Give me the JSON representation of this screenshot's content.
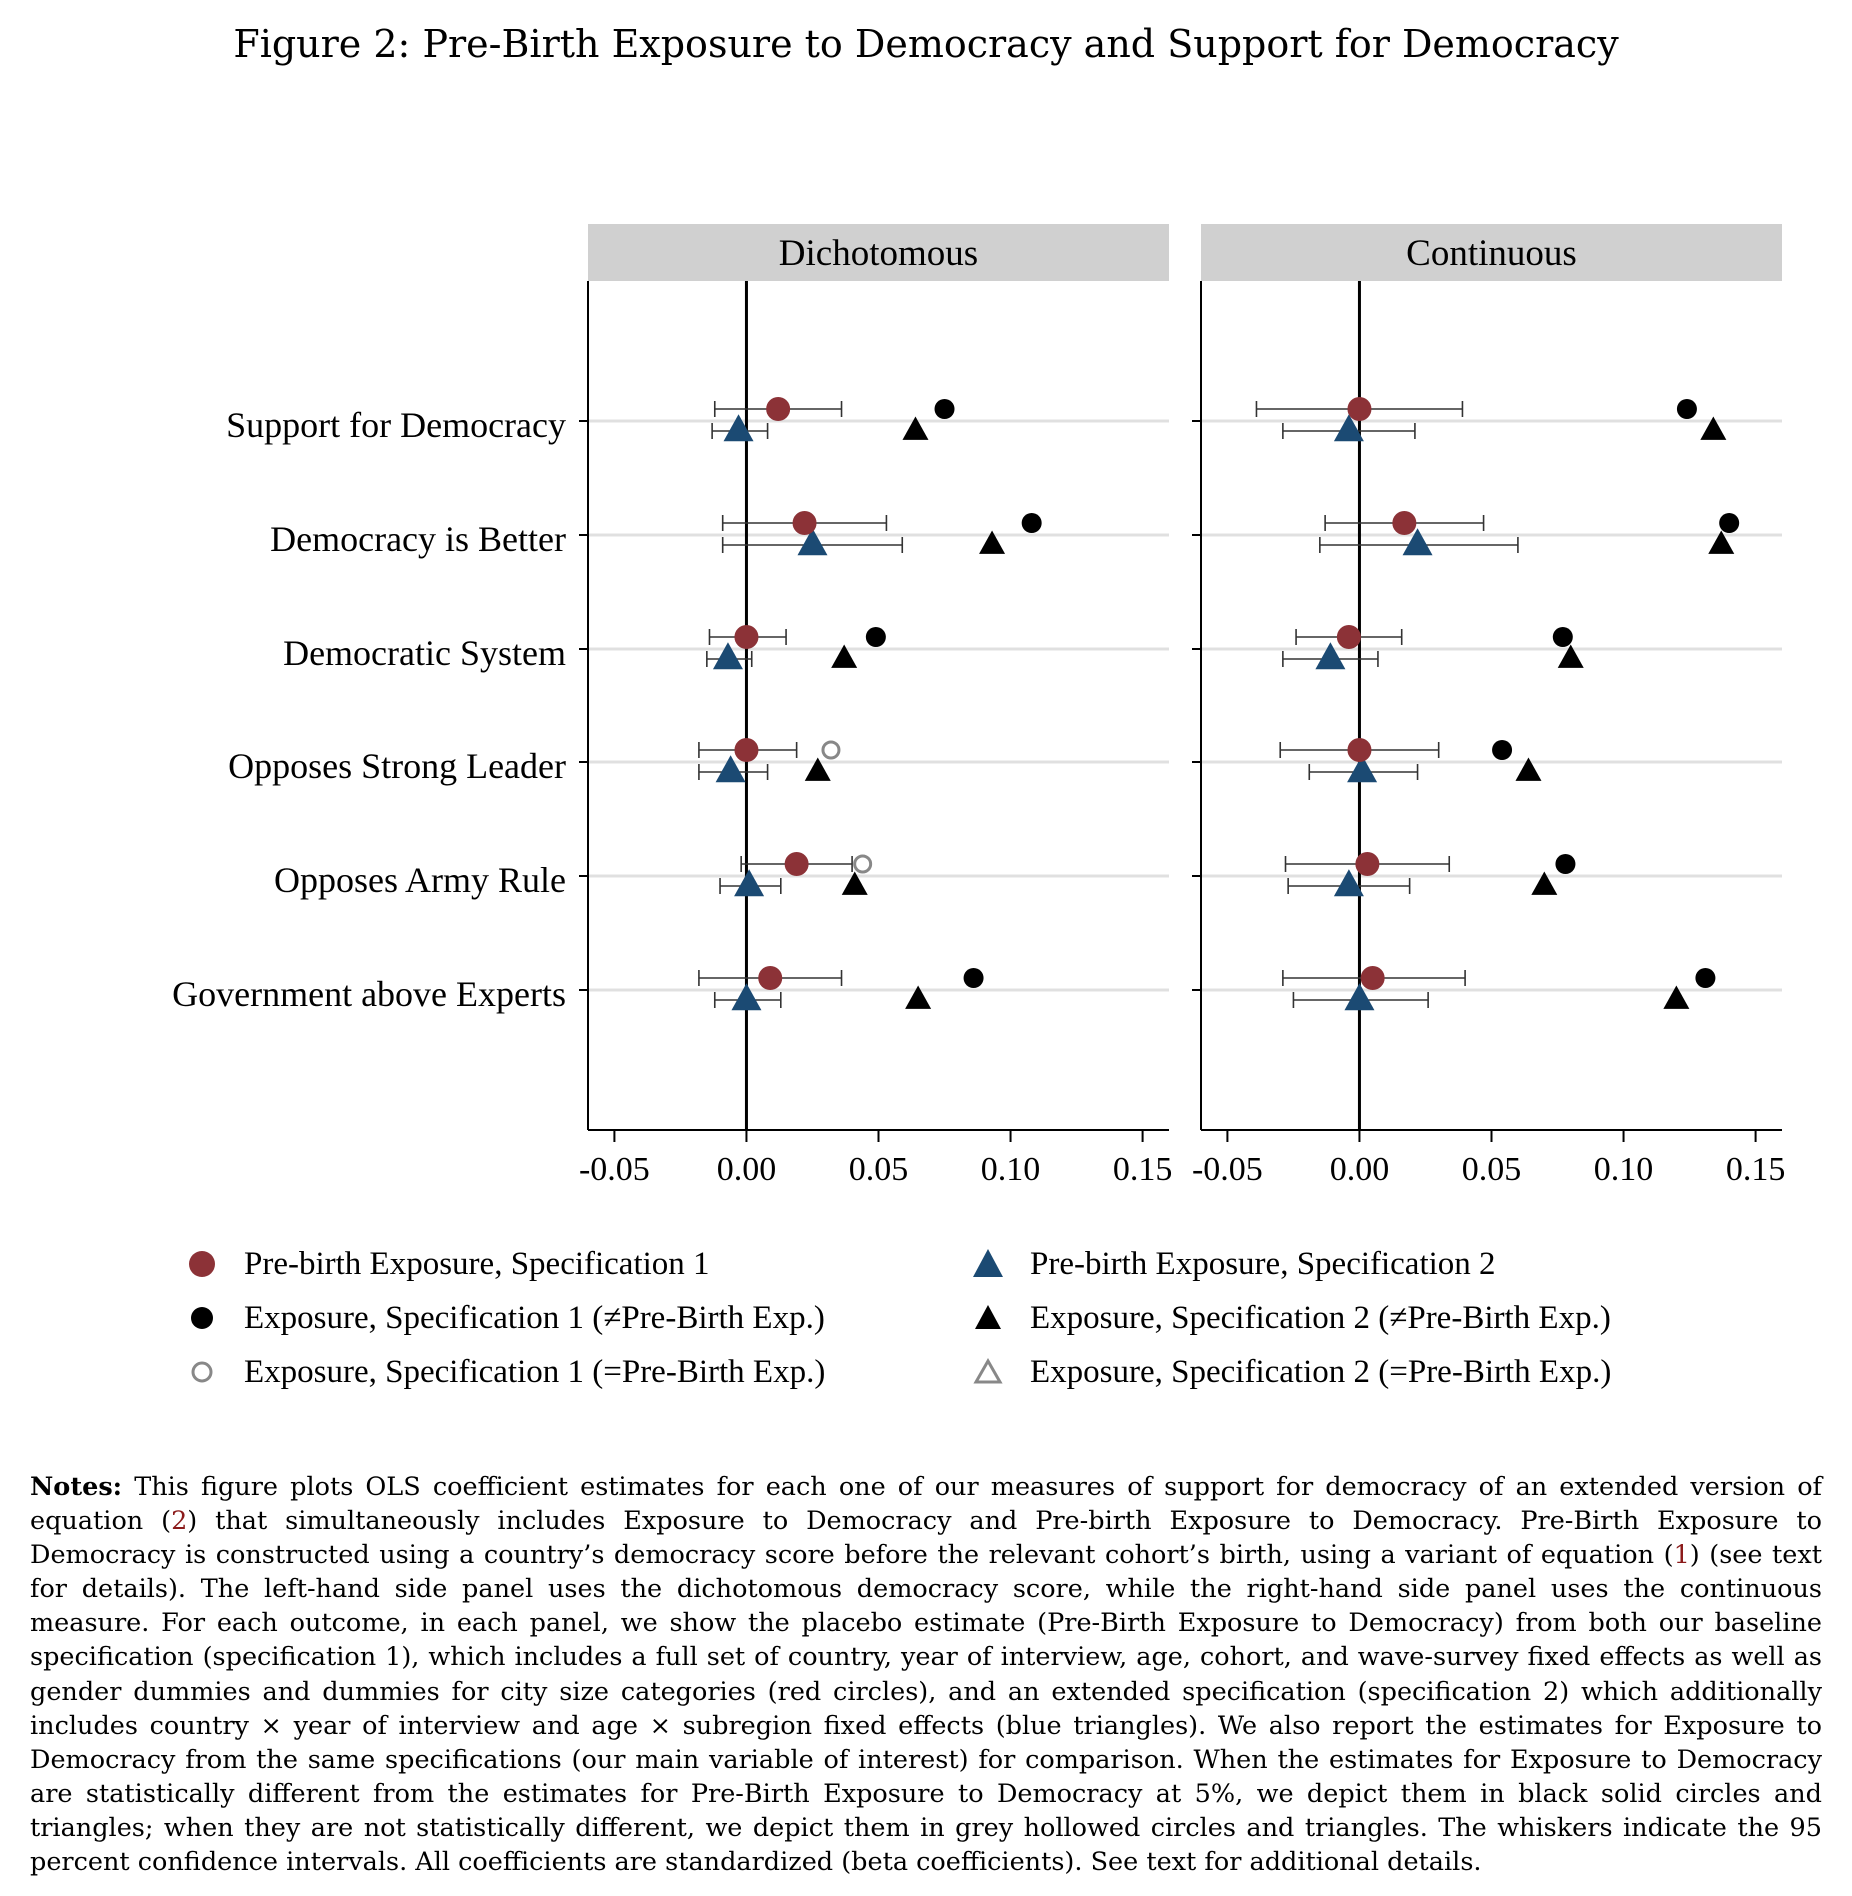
{
  "figure_title": "Figure 2: Pre-Birth Exposure to Democracy and Support for Democracy",
  "colors": {
    "prebirth_spec1": "#8c3237",
    "prebirth_spec2": "#1b4a73",
    "exposure_diff": "#000000",
    "exposure_same": "#888888",
    "panel_header": "#d0d0d0",
    "gridline": "#e0e0e0"
  },
  "chart_data": {
    "type": "scatter",
    "subtype": "coefficient-plot",
    "xlim": [
      -0.06,
      0.16
    ],
    "x_ticks": [
      "-0.05",
      "0.00",
      "0.05",
      "0.10",
      "0.15"
    ],
    "x_tick_values": [
      -0.05,
      0.0,
      0.05,
      0.1,
      0.15
    ],
    "reference_line": 0,
    "grid": "horizontal",
    "legend_position": "bottom",
    "outcomes": [
      "Support for Democracy",
      "Democracy is Better",
      "Democratic System",
      "Opposes Strong Leader",
      "Opposes Army Rule",
      "Government above Experts"
    ],
    "legend": [
      {
        "label": "Pre-birth Exposure, Specification 1",
        "marker": "circle",
        "fill": "#8c3237",
        "hollow": false
      },
      {
        "label": "Pre-birth Exposure, Specification 2",
        "marker": "triangle",
        "fill": "#1b4a73",
        "hollow": false
      },
      {
        "label": "Exposure, Specification 1 (≠Pre-Birth Exp.)",
        "marker": "circle",
        "fill": "#000000",
        "hollow": false
      },
      {
        "label": "Exposure, Specification 2 (≠Pre-Birth Exp.)",
        "marker": "triangle",
        "fill": "#000000",
        "hollow": false
      },
      {
        "label": "Exposure, Specification 1 (=Pre-Birth Exp.)",
        "marker": "circle",
        "fill": "#888888",
        "hollow": true
      },
      {
        "label": "Exposure, Specification 2 (=Pre-Birth Exp.)",
        "marker": "triangle",
        "fill": "#888888",
        "hollow": true
      }
    ],
    "panels": [
      {
        "title": "Dichotomous",
        "prebirth_spec1": [
          {
            "est": 0.012,
            "lo": -0.012,
            "hi": 0.036
          },
          {
            "est": 0.022,
            "lo": -0.009,
            "hi": 0.053
          },
          {
            "est": 0.0,
            "lo": -0.014,
            "hi": 0.015
          },
          {
            "est": 0.0,
            "lo": -0.018,
            "hi": 0.019
          },
          {
            "est": 0.019,
            "lo": -0.002,
            "hi": 0.04
          },
          {
            "est": 0.009,
            "lo": -0.018,
            "hi": 0.036
          }
        ],
        "prebirth_spec2": [
          {
            "est": -0.003,
            "lo": -0.013,
            "hi": 0.008
          },
          {
            "est": 0.025,
            "lo": -0.009,
            "hi": 0.059
          },
          {
            "est": -0.007,
            "lo": -0.015,
            "hi": 0.002
          },
          {
            "est": -0.006,
            "lo": -0.018,
            "hi": 0.008
          },
          {
            "est": 0.001,
            "lo": -0.01,
            "hi": 0.013
          },
          {
            "est": 0.0,
            "lo": -0.012,
            "hi": 0.013
          }
        ],
        "exposure_spec1": [
          {
            "est": 0.075,
            "same": false
          },
          {
            "est": 0.108,
            "same": false
          },
          {
            "est": 0.049,
            "same": false
          },
          {
            "est": 0.032,
            "same": true
          },
          {
            "est": 0.044,
            "same": true
          },
          {
            "est": 0.086,
            "same": false
          }
        ],
        "exposure_spec2": [
          {
            "est": 0.064,
            "same": false
          },
          {
            "est": 0.093,
            "same": false
          },
          {
            "est": 0.037,
            "same": false
          },
          {
            "est": 0.027,
            "same": false
          },
          {
            "est": 0.041,
            "same": false
          },
          {
            "est": 0.065,
            "same": false
          }
        ]
      },
      {
        "title": "Continuous",
        "prebirth_spec1": [
          {
            "est": 0.0,
            "lo": -0.039,
            "hi": 0.039
          },
          {
            "est": 0.017,
            "lo": -0.013,
            "hi": 0.047
          },
          {
            "est": -0.004,
            "lo": -0.024,
            "hi": 0.016
          },
          {
            "est": 0.0,
            "lo": -0.03,
            "hi": 0.03
          },
          {
            "est": 0.003,
            "lo": -0.028,
            "hi": 0.034
          },
          {
            "est": 0.005,
            "lo": -0.029,
            "hi": 0.04
          }
        ],
        "prebirth_spec2": [
          {
            "est": -0.004,
            "lo": -0.029,
            "hi": 0.021
          },
          {
            "est": 0.022,
            "lo": -0.015,
            "hi": 0.06
          },
          {
            "est": -0.011,
            "lo": -0.029,
            "hi": 0.007
          },
          {
            "est": 0.001,
            "lo": -0.019,
            "hi": 0.022
          },
          {
            "est": -0.004,
            "lo": -0.027,
            "hi": 0.019
          },
          {
            "est": 0.0,
            "lo": -0.025,
            "hi": 0.026
          }
        ],
        "exposure_spec1": [
          {
            "est": 0.124,
            "same": false
          },
          {
            "est": 0.14,
            "same": false
          },
          {
            "est": 0.077,
            "same": false
          },
          {
            "est": 0.054,
            "same": false
          },
          {
            "est": 0.078,
            "same": false
          },
          {
            "est": 0.131,
            "same": false
          }
        ],
        "exposure_spec2": [
          {
            "est": 0.134,
            "same": false
          },
          {
            "est": 0.137,
            "same": false
          },
          {
            "est": 0.08,
            "same": false
          },
          {
            "est": 0.064,
            "same": false
          },
          {
            "est": 0.07,
            "same": false
          },
          {
            "est": 0.12,
            "same": false
          }
        ]
      }
    ]
  },
  "notes": {
    "label": "Notes:",
    "text_1": " This figure plots OLS coefficient estimates for each one of our measures of support for democracy of an extended version of equation (",
    "ref_1": "2",
    "text_2": ") that simultaneously includes Exposure to Democracy and Pre-birth Exposure to Democracy. Pre-Birth Exposure to Democracy is constructed using a country’s democracy score before the relevant cohort’s birth, using a variant of equation (",
    "ref_2": "1",
    "text_3": ") (see text for details). The left-hand side panel uses the dichotomous democracy score, while the right-hand side panel uses the continuous measure. For each outcome, in each panel, we show the placebo estimate (Pre-Birth Exposure to Democracy) from both our baseline specification (specification 1), which includes a full set of country, year of interview, age, cohort, and wave-survey fixed effects as well as gender dummies and dummies for city size categories (red circles), and an extended specification (specification 2) which additionally includes country × year of interview and age × subregion fixed effects (blue triangles). We also report the estimates for Exposure to Democracy from the same specifications (our main variable of interest) for comparison. When the estimates for Exposure to Democracy are statistically different from the estimates for Pre-Birth Exposure to Democracy at 5%, we depict them in black solid circles and triangles; when they are not statistically different, we depict them in grey hollowed circles and triangles. The whiskers indicate the 95 percent confidence intervals. All coefficients are standardized (beta coefficients). See text for additional details."
  }
}
